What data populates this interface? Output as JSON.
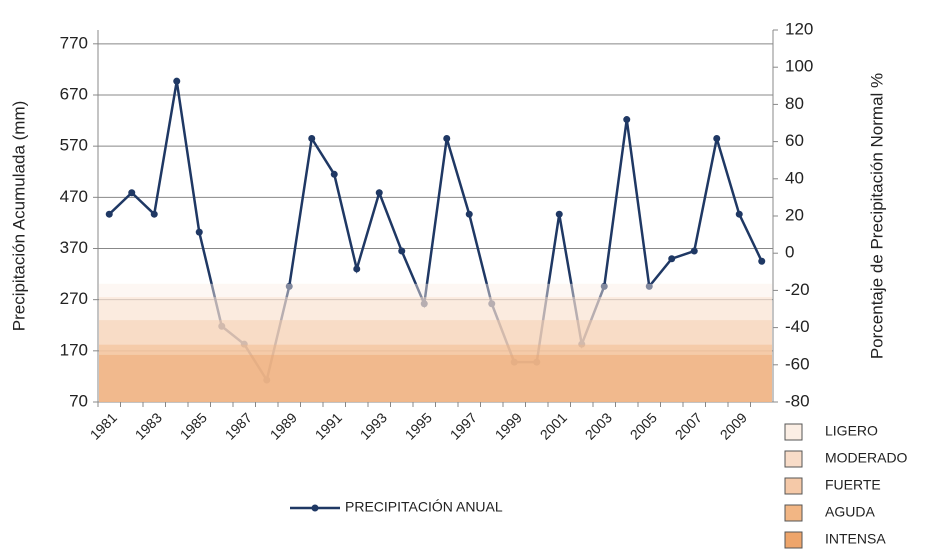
{
  "chart_data": {
    "type": "line",
    "y_label": "Precipitación Acumulada (mm)",
    "y2_label": "Porcentaje de Precipitación Normal %",
    "categories": [
      "1981",
      null,
      "1983",
      null,
      "1985",
      null,
      "1987",
      null,
      "1989",
      null,
      "1991",
      null,
      "1993",
      null,
      "1995",
      null,
      "1997",
      null,
      "1999",
      null,
      "2001",
      null,
      "2003",
      null,
      "2005",
      null,
      "2007",
      null,
      "2009",
      null
    ],
    "series": [
      {
        "name": "PRECIPITACIÓN ANUAL",
        "color": "#1f3864",
        "values": [
          437,
          479,
          437,
          697,
          402,
          218,
          183,
          113,
          296,
          585,
          515,
          330,
          479,
          365,
          262,
          585,
          437,
          262,
          148,
          148,
          437,
          183,
          296,
          622,
          296,
          350,
          365,
          585,
          437,
          345
        ]
      }
    ],
    "ylim": [
      70,
      797
    ],
    "yticks": [
      70,
      170,
      270,
      370,
      470,
      570,
      670,
      770
    ],
    "y2lim": [
      -80,
      120
    ],
    "y2ticks": [
      -80,
      -60,
      -40,
      -20,
      0,
      20,
      40,
      60,
      80,
      100,
      120
    ],
    "grid": true,
    "bands": [
      {
        "name": "LIGERO",
        "color": "#fbeee4",
        "top": 301
      },
      {
        "name": "MODERADO",
        "color": "#f8dcc8",
        "top": 275
      },
      {
        "name": "FUERTE",
        "color": "#f5c9a8",
        "top": 230
      },
      {
        "name": "AGUDA",
        "color": "#f2b684",
        "top": 182
      },
      {
        "name": "INTENSA",
        "color": "#eea56b",
        "top": 162
      }
    ]
  }
}
